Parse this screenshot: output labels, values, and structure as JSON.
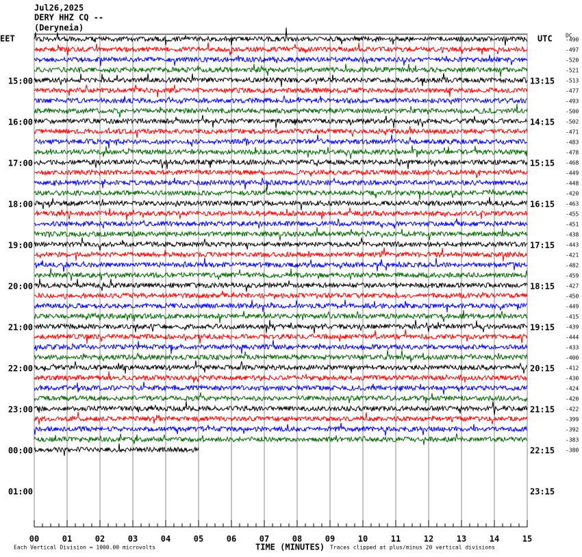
{
  "header": {
    "date": "Jul26,2025",
    "station": "DERY HHZ CQ --",
    "place": "(Deryneia)"
  },
  "left_zone": "EET",
  "right_zone": "UTC",
  "dc_title": "DC",
  "left_hours": [
    "15:00",
    "16:00",
    "17:00",
    "18:00",
    "19:00",
    "20:00",
    "21:00",
    "22:00",
    "23:00",
    "00:00",
    "01:00"
  ],
  "right_hours": [
    "13:15",
    "14:15",
    "15:15",
    "16:15",
    "17:15",
    "18:15",
    "19:15",
    "20:15",
    "21:15",
    "22:15",
    "23:15"
  ],
  "dc_offsets": [
    "-490",
    "-497",
    "-520",
    "-521",
    "-513",
    "-477",
    "-493",
    "-500",
    "-502",
    "-471",
    "-483",
    "-478",
    "-468",
    "-449",
    "-448",
    "-420",
    "-463",
    "-455",
    "-451",
    "-438",
    "-443",
    "-421",
    "-482",
    "-459",
    "-427",
    "-450",
    "-449",
    "-415",
    "-439",
    "-444",
    "-433",
    "-400",
    "-412",
    "-430",
    "-424",
    "-420",
    "-422",
    "-399",
    "-392",
    "-383",
    "-380"
  ],
  "x_ticks": [
    "00",
    "01",
    "02",
    "03",
    "04",
    "05",
    "06",
    "07",
    "08",
    "09",
    "10",
    "11",
    "12",
    "13",
    "14",
    "15"
  ],
  "x_label": "TIME (MINUTES)",
  "scale_note": "Each Vertical Division = 1000.00 microvolts",
  "clip_note": "Traces clipped at plus/minus 20 vertical divisions"
}
